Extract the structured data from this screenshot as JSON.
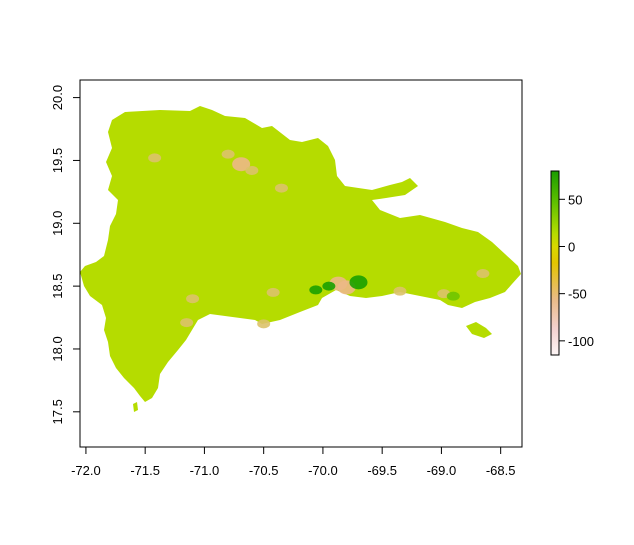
{
  "chart_data": {
    "type": "heatmap",
    "title": "",
    "xlabel": "",
    "ylabel": "",
    "xlim": [
      -72.05,
      -68.32
    ],
    "ylim": [
      17.22,
      20.14
    ],
    "x_ticks": [
      "-72.0",
      "-71.5",
      "-71.0",
      "-70.5",
      "-70.0",
      "-69.5",
      "-69.0",
      "-68.5"
    ],
    "x_tick_values": [
      -72.0,
      -71.5,
      -71.0,
      -70.5,
      -70.0,
      -69.5,
      -69.0,
      -68.5
    ],
    "y_ticks": [
      "17.5",
      "18.0",
      "18.5",
      "19.0",
      "19.5",
      "20.0"
    ],
    "y_tick_values": [
      17.5,
      18.0,
      18.5,
      19.0,
      19.5,
      20.0
    ],
    "legend": {
      "placement": "right",
      "range": [
        -115,
        80
      ],
      "ticks": [
        "50",
        "0",
        "-50",
        "-100"
      ],
      "tick_values": [
        50,
        0,
        -50,
        -100
      ],
      "colors": [
        "#fdf6f6",
        "#f2bfc0",
        "#e8c37a",
        "#e3d40a",
        "#b5dc00",
        "#5fc000",
        "#1aa000"
      ]
    },
    "fill_color": "#b5dc00",
    "hotspots": [
      {
        "lon": -69.87,
        "lat": 18.52,
        "value": -60
      },
      {
        "lon": -69.8,
        "lat": 18.49,
        "value": -75
      },
      {
        "lon": -69.95,
        "lat": 18.5,
        "value": 50
      },
      {
        "lon": -69.7,
        "lat": 18.53,
        "value": 65
      },
      {
        "lon": -70.69,
        "lat": 19.47,
        "value": -70
      },
      {
        "lon": -70.6,
        "lat": 19.42,
        "value": -30
      },
      {
        "lon": -70.35,
        "lat": 19.28,
        "value": -25
      },
      {
        "lon": -70.06,
        "lat": 18.47,
        "value": 45
      },
      {
        "lon": -70.42,
        "lat": 18.45,
        "value": -35
      },
      {
        "lon": -71.1,
        "lat": 18.4,
        "value": -30
      },
      {
        "lon": -68.98,
        "lat": 18.44,
        "value": -40
      },
      {
        "lon": -68.9,
        "lat": 18.42,
        "value": 30
      },
      {
        "lon": -69.35,
        "lat": 18.46,
        "value": -30
      },
      {
        "lon": -71.42,
        "lat": 19.52,
        "value": -20
      },
      {
        "lon": -70.8,
        "lat": 19.55,
        "value": -20
      },
      {
        "lon": -70.5,
        "lat": 18.2,
        "value": -25
      },
      {
        "lon": -71.15,
        "lat": 18.21,
        "value": -35
      },
      {
        "lon": -68.65,
        "lat": 18.6,
        "value": -30
      }
    ]
  }
}
